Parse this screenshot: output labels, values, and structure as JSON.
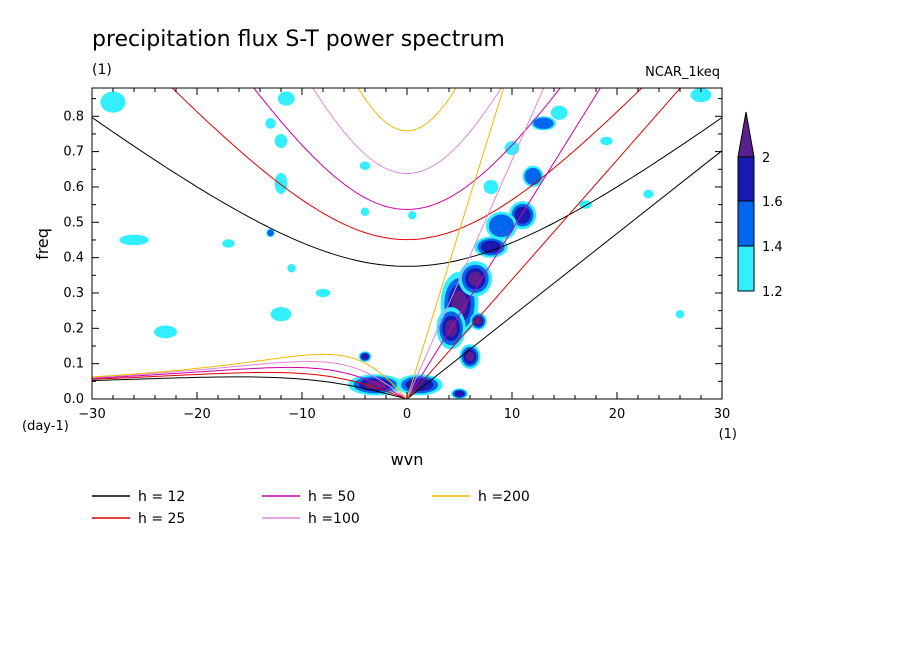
{
  "chart_data": {
    "type": "heatmap",
    "title": "precipitation flux S-T power spectrum",
    "subtitle_left": "(1)",
    "subtitle_right": "NCAR_1keq",
    "xlabel": "wvn",
    "ylabel": "freq",
    "x_unit_label": "(1)",
    "y_unit_label": "(day-1)",
    "xlim": [
      -30,
      30
    ],
    "ylim": [
      0,
      0.88
    ],
    "x_ticks": [
      -30,
      -20,
      -10,
      0,
      10,
      20,
      30
    ],
    "y_ticks": [
      0.0,
      0.1,
      0.2,
      0.3,
      0.4,
      0.5,
      0.6,
      0.7,
      0.8
    ],
    "colorbar": {
      "levels": [
        1.2,
        1.4,
        1.6,
        2
      ],
      "level_labels": [
        "1.2",
        "1.4",
        "1.6",
        "2"
      ],
      "colors": [
        "#33eeff",
        "#0066ee",
        "#1a1ab0",
        "#5a2090"
      ]
    },
    "dispersion_curves": [
      {
        "name": "h = 12",
        "h": 12,
        "color": "#000000"
      },
      {
        "name": "h = 25",
        "h": 25,
        "color": "#dd0000"
      },
      {
        "name": "h = 50",
        "h": 50,
        "color": "#cc00aa"
      },
      {
        "name": "h =100",
        "h": 100,
        "color": "#dd88dd"
      },
      {
        "name": "h =200",
        "h": 200,
        "color": "#eebb00"
      }
    ],
    "power_blobs": [
      {
        "x": 5.0,
        "y": 0.27,
        "rx": 1.8,
        "ry": 0.09,
        "level": 3
      },
      {
        "x": 4.2,
        "y": 0.2,
        "rx": 1.4,
        "ry": 0.06,
        "level": 3
      },
      {
        "x": 6.5,
        "y": 0.34,
        "rx": 1.6,
        "ry": 0.05,
        "level": 3
      },
      {
        "x": 8.0,
        "y": 0.43,
        "rx": 1.6,
        "ry": 0.03,
        "level": 2
      },
      {
        "x": 11.0,
        "y": 0.52,
        "rx": 1.3,
        "ry": 0.04,
        "level": 2
      },
      {
        "x": 6.0,
        "y": 0.12,
        "rx": 1.0,
        "ry": 0.035,
        "level": 3
      },
      {
        "x": 6.8,
        "y": 0.22,
        "rx": 0.8,
        "ry": 0.025,
        "level": 3
      },
      {
        "x": -3.0,
        "y": 0.04,
        "rx": 2.6,
        "ry": 0.03,
        "level": 3
      },
      {
        "x": 1.2,
        "y": 0.04,
        "rx": 2.2,
        "ry": 0.03,
        "level": 2
      },
      {
        "x": -4.0,
        "y": 0.12,
        "rx": 0.6,
        "ry": 0.015,
        "level": 2
      },
      {
        "x": 5.0,
        "y": 0.015,
        "rx": 0.8,
        "ry": 0.015,
        "level": 2
      },
      {
        "x": 9.0,
        "y": 0.49,
        "rx": 1.5,
        "ry": 0.04,
        "level": 1
      },
      {
        "x": 12.0,
        "y": 0.63,
        "rx": 1.0,
        "ry": 0.03,
        "level": 1
      },
      {
        "x": 13.0,
        "y": 0.78,
        "rx": 1.2,
        "ry": 0.02,
        "level": 1
      },
      {
        "x": 8.0,
        "y": 0.6,
        "rx": 0.7,
        "ry": 0.02,
        "level": 0
      },
      {
        "x": 10.0,
        "y": 0.71,
        "rx": 0.7,
        "ry": 0.02,
        "level": 0
      },
      {
        "x": 14.5,
        "y": 0.81,
        "rx": 0.8,
        "ry": 0.02,
        "level": 0
      },
      {
        "x": -28.0,
        "y": 0.84,
        "rx": 1.2,
        "ry": 0.03,
        "level": 0
      },
      {
        "x": -11.5,
        "y": 0.85,
        "rx": 0.8,
        "ry": 0.02,
        "level": 0
      },
      {
        "x": -13.0,
        "y": 0.47,
        "rx": 0.4,
        "ry": 0.012,
        "level": 1
      },
      {
        "x": -17.0,
        "y": 0.44,
        "rx": 0.6,
        "ry": 0.012,
        "level": 0
      },
      {
        "x": -26.0,
        "y": 0.45,
        "rx": 1.4,
        "ry": 0.015,
        "level": 0
      },
      {
        "x": -12.0,
        "y": 0.61,
        "rx": 0.6,
        "ry": 0.03,
        "level": 0
      },
      {
        "x": -4.0,
        "y": 0.66,
        "rx": 0.5,
        "ry": 0.012,
        "level": 0
      },
      {
        "x": -4.0,
        "y": 0.53,
        "rx": 0.4,
        "ry": 0.012,
        "level": 0
      },
      {
        "x": -23.0,
        "y": 0.19,
        "rx": 1.1,
        "ry": 0.018,
        "level": 0
      },
      {
        "x": -12.0,
        "y": 0.24,
        "rx": 1.0,
        "ry": 0.02,
        "level": 0
      },
      {
        "x": -8.0,
        "y": 0.3,
        "rx": 0.7,
        "ry": 0.012,
        "level": 0
      },
      {
        "x": -11.0,
        "y": 0.37,
        "rx": 0.4,
        "ry": 0.012,
        "level": 0
      },
      {
        "x": -12.0,
        "y": 0.73,
        "rx": 0.6,
        "ry": 0.02,
        "level": 0
      },
      {
        "x": -13.0,
        "y": 0.78,
        "rx": 0.5,
        "ry": 0.015,
        "level": 0
      },
      {
        "x": 17.0,
        "y": 0.55,
        "rx": 0.6,
        "ry": 0.012,
        "level": 0
      },
      {
        "x": 19.0,
        "y": 0.73,
        "rx": 0.6,
        "ry": 0.012,
        "level": 0
      },
      {
        "x": 26.0,
        "y": 0.24,
        "rx": 0.4,
        "ry": 0.012,
        "level": 0
      },
      {
        "x": 28.0,
        "y": 0.86,
        "rx": 1.0,
        "ry": 0.02,
        "level": 0
      },
      {
        "x": 0.5,
        "y": 0.52,
        "rx": 0.4,
        "ry": 0.012,
        "level": 0
      },
      {
        "x": 23.0,
        "y": 0.58,
        "rx": 0.5,
        "ry": 0.012,
        "level": 0
      }
    ]
  }
}
